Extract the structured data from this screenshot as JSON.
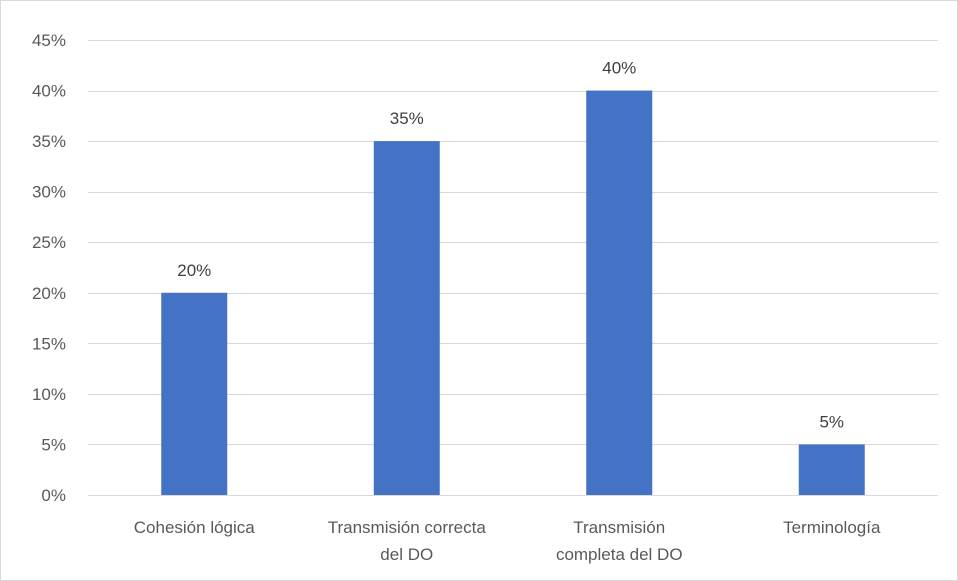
{
  "chart_data": {
    "type": "bar",
    "title": "",
    "xlabel": "",
    "ylabel": "",
    "categories": [
      [
        "Cohesión lógica"
      ],
      [
        "Transmisión correcta",
        "del DO"
      ],
      [
        "Transmisión",
        "completa del DO"
      ],
      [
        "Terminología"
      ]
    ],
    "values": [
      20,
      35,
      40,
      5
    ],
    "value_labels": [
      "20%",
      "35%",
      "40%",
      "5%"
    ],
    "ylim": [
      0,
      45
    ],
    "y_ticks": [
      {
        "value": 0,
        "label": "0%"
      },
      {
        "value": 5,
        "label": "5%"
      },
      {
        "value": 10,
        "label": "10%"
      },
      {
        "value": 15,
        "label": "15%"
      },
      {
        "value": 20,
        "label": "20%"
      },
      {
        "value": 25,
        "label": "25%"
      },
      {
        "value": 30,
        "label": "30%"
      },
      {
        "value": 35,
        "label": "35%"
      },
      {
        "value": 40,
        "label": "40%"
      },
      {
        "value": 45,
        "label": "45%"
      }
    ],
    "grid": true,
    "legend": "none",
    "colors": {
      "bar": "#4472c4",
      "grid": "#d9d9d9",
      "axis_text": "#595959",
      "label_text": "#404040"
    }
  }
}
